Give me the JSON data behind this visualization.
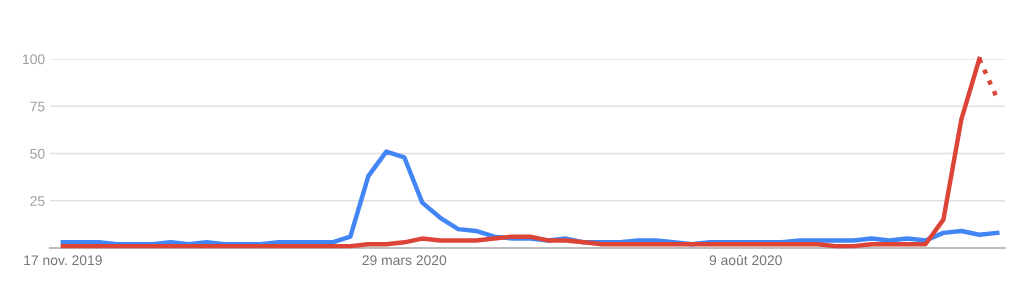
{
  "chart_data": {
    "type": "line",
    "x": [
      "2019-11-17",
      "2019-11-24",
      "2019-12-01",
      "2019-12-08",
      "2019-12-15",
      "2019-12-22",
      "2019-12-29",
      "2020-01-05",
      "2020-01-12",
      "2020-01-19",
      "2020-01-26",
      "2020-02-02",
      "2020-02-09",
      "2020-02-16",
      "2020-02-23",
      "2020-03-01",
      "2020-03-08",
      "2020-03-15",
      "2020-03-22",
      "2020-03-29",
      "2020-04-05",
      "2020-04-12",
      "2020-04-19",
      "2020-04-26",
      "2020-05-03",
      "2020-05-10",
      "2020-05-17",
      "2020-05-24",
      "2020-05-31",
      "2020-06-07",
      "2020-06-14",
      "2020-06-21",
      "2020-06-28",
      "2020-07-05",
      "2020-07-12",
      "2020-07-19",
      "2020-07-26",
      "2020-08-02",
      "2020-08-09",
      "2020-08-16",
      "2020-08-23",
      "2020-08-30",
      "2020-09-06",
      "2020-09-13",
      "2020-09-20",
      "2020-09-27",
      "2020-10-04",
      "2020-10-11",
      "2020-10-18",
      "2020-10-25",
      "2020-11-01",
      "2020-11-08",
      "2020-11-15"
    ],
    "series": [
      {
        "color": "#4285f4",
        "values": [
          3,
          3,
          3,
          2,
          2,
          2,
          3,
          2,
          3,
          2,
          2,
          2,
          3,
          3,
          3,
          3,
          6,
          38,
          51,
          48,
          24,
          16,
          10,
          9,
          6,
          5,
          5,
          4,
          5,
          3,
          3,
          3,
          4,
          4,
          3,
          2,
          3,
          3,
          3,
          3,
          3,
          4,
          4,
          4,
          4,
          5,
          4,
          5,
          4,
          8,
          9,
          7,
          8
        ]
      },
      {
        "color": "#db4437",
        "values": [
          1,
          1,
          1,
          1,
          1,
          1,
          1,
          1,
          1,
          1,
          1,
          1,
          1,
          1,
          1,
          1,
          1,
          2,
          2,
          3,
          5,
          4,
          4,
          4,
          5,
          6,
          6,
          4,
          4,
          3,
          2,
          2,
          2,
          2,
          2,
          2,
          2,
          2,
          2,
          2,
          2,
          2,
          2,
          1,
          1,
          2,
          2,
          2,
          2,
          15,
          68,
          100,
          null
        ]
      },
      {
        "color": "#db4437",
        "line_style": "dotted",
        "x": [
          "2020-11-08",
          "2020-11-15"
        ],
        "values": [
          100,
          79
        ]
      }
    ],
    "xlim": [
      "2019-11-12",
      "2020-11-18"
    ],
    "xticks": [
      {
        "value": "2019-11-17",
        "label": "17 nov. 2019"
      },
      {
        "value": "2020-03-29",
        "label": "29 mars 2020"
      },
      {
        "value": "2020-08-09",
        "label": "9 août 2020"
      }
    ],
    "ylim": [
      0,
      100
    ],
    "yticks": [
      {
        "value": 0,
        "label": null
      },
      25,
      50,
      75,
      100
    ],
    "grid": "y",
    "legend": false,
    "line_style": "solid",
    "marker": "none"
  }
}
